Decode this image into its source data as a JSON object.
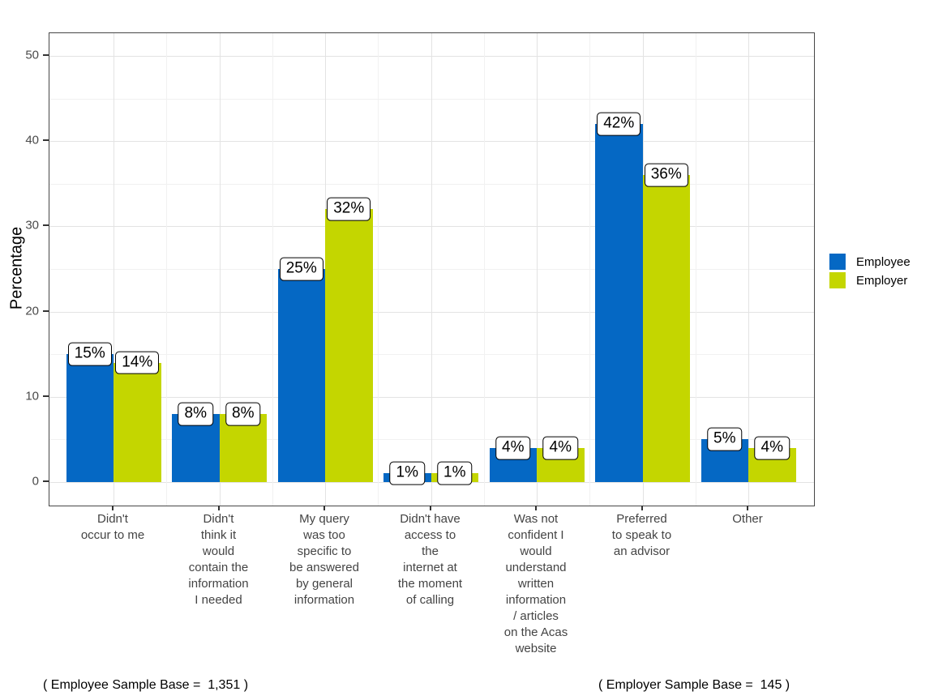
{
  "chart_data": {
    "type": "bar",
    "title": "",
    "xlabel": "",
    "ylabel": "Percentage",
    "ylim": [
      0,
      52
    ],
    "yticks": [
      0,
      10,
      20,
      30,
      40,
      50
    ],
    "grid": true,
    "legend_position": "right",
    "categories": [
      "Didn't occur to me",
      "Didn't think it would contain the information I needed",
      "My query was too specific to be answered by general information",
      "Didn't have access to the internet at the moment of calling",
      "Was not confident I would understand written information / articles on the Acas website",
      "Preferred to speak to an advisor",
      "Other"
    ],
    "category_lines": [
      "Didn't\noccur to me",
      "Didn't\nthink it\nwould\ncontain the\ninformation\nI needed",
      "My query\nwas too\nspecific to\nbe answered\nby general\ninformation",
      "Didn't have\naccess to\nthe\ninternet at\nthe moment\nof calling",
      "Was not\nconfident I\nwould\nunderstand\nwritten\ninformation\n/ articles\non the Acas\nwebsite",
      "Preferred\nto speak to\nan advisor",
      "Other"
    ],
    "series": [
      {
        "name": "Employee",
        "color": "#0568c4",
        "values": [
          15,
          8,
          25,
          1,
          4,
          42,
          5
        ],
        "labels": [
          "15%",
          "8%",
          "25%",
          "1%",
          "4%",
          "42%",
          "5%"
        ]
      },
      {
        "name": "Employer",
        "color": "#c4d600",
        "values": [
          14,
          8,
          32,
          1,
          4,
          36,
          4
        ],
        "labels": [
          "14%",
          "8%",
          "32%",
          "1%",
          "4%",
          "36%",
          "4%"
        ]
      }
    ]
  },
  "axis": {
    "y_title": "Percentage"
  },
  "legend": {
    "items": [
      {
        "label": "Employee",
        "color": "#0568c4"
      },
      {
        "label": "Employer",
        "color": "#c4d600"
      }
    ]
  },
  "footnotes": {
    "left": "( Employee Sample Base =  1,351 )",
    "right": "( Employer Sample Base =  145 )"
  },
  "colors": {
    "employee": "#0568c4",
    "employer": "#c4d600",
    "grid_major": "#e3e3e3",
    "grid_minor": "#f1f1f1",
    "panel_border": "#474747",
    "tick_text": "#4a4a4a"
  }
}
